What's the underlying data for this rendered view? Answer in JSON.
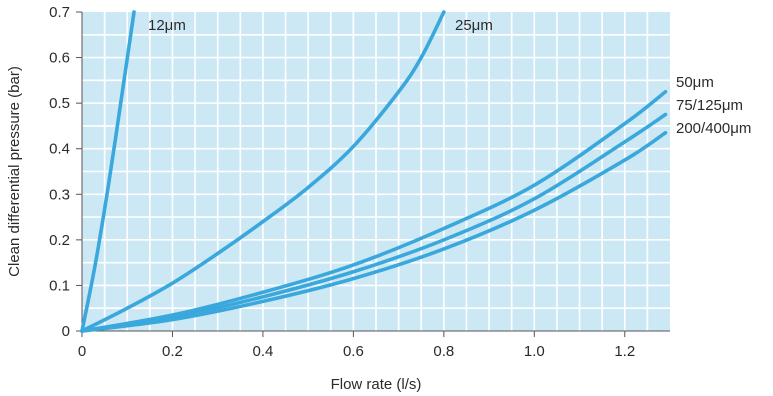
{
  "chart_data": {
    "type": "line",
    "title": "",
    "xlabel": "Flow rate (l/s)",
    "ylabel": "Clean differential pressure (bar)",
    "xlim": [
      0,
      1.3
    ],
    "ylim": [
      0,
      0.7
    ],
    "x_ticks": [
      "0",
      "0.2",
      "0.4",
      "0.6",
      "0.8",
      "1.0",
      "1.2"
    ],
    "x_tick_values": [
      0,
      0.2,
      0.4,
      0.6,
      0.8,
      1.0,
      1.2
    ],
    "y_ticks": [
      "0",
      "0.1",
      "0.2",
      "0.3",
      "0.4",
      "0.5",
      "0.6",
      "0.7"
    ],
    "y_tick_values": [
      0,
      0.1,
      0.2,
      0.3,
      0.4,
      0.5,
      0.6,
      0.7
    ],
    "grid": true,
    "colors": {
      "plot_background": "#cde8f5",
      "grid": "#ffffff",
      "line": "#3aa8dc",
      "text": "#2b2b2b"
    },
    "series": [
      {
        "name": "12μm",
        "x": [
          0,
          0.03,
          0.06,
          0.09,
          0.115
        ],
        "y": [
          0,
          0.15,
          0.33,
          0.53,
          0.7
        ]
      },
      {
        "name": "25μm",
        "x": [
          0,
          0.1,
          0.2,
          0.3,
          0.4,
          0.5,
          0.6,
          0.7,
          0.75,
          0.8
        ],
        "y": [
          0,
          0.05,
          0.105,
          0.17,
          0.24,
          0.315,
          0.405,
          0.525,
          0.6,
          0.7
        ]
      },
      {
        "name": "50μm",
        "x": [
          0,
          0.2,
          0.4,
          0.6,
          0.8,
          1.0,
          1.2,
          1.29
        ],
        "y": [
          0,
          0.035,
          0.085,
          0.145,
          0.225,
          0.32,
          0.455,
          0.525
        ]
      },
      {
        "name": "75/125μm",
        "x": [
          0,
          0.2,
          0.4,
          0.6,
          0.8,
          1.0,
          1.2,
          1.29
        ],
        "y": [
          0,
          0.03,
          0.075,
          0.13,
          0.2,
          0.29,
          0.415,
          0.475
        ]
      },
      {
        "name": "200/400μm",
        "x": [
          0,
          0.2,
          0.4,
          0.6,
          0.8,
          1.0,
          1.2,
          1.29
        ],
        "y": [
          0,
          0.025,
          0.065,
          0.115,
          0.18,
          0.265,
          0.375,
          0.435
        ]
      }
    ]
  }
}
